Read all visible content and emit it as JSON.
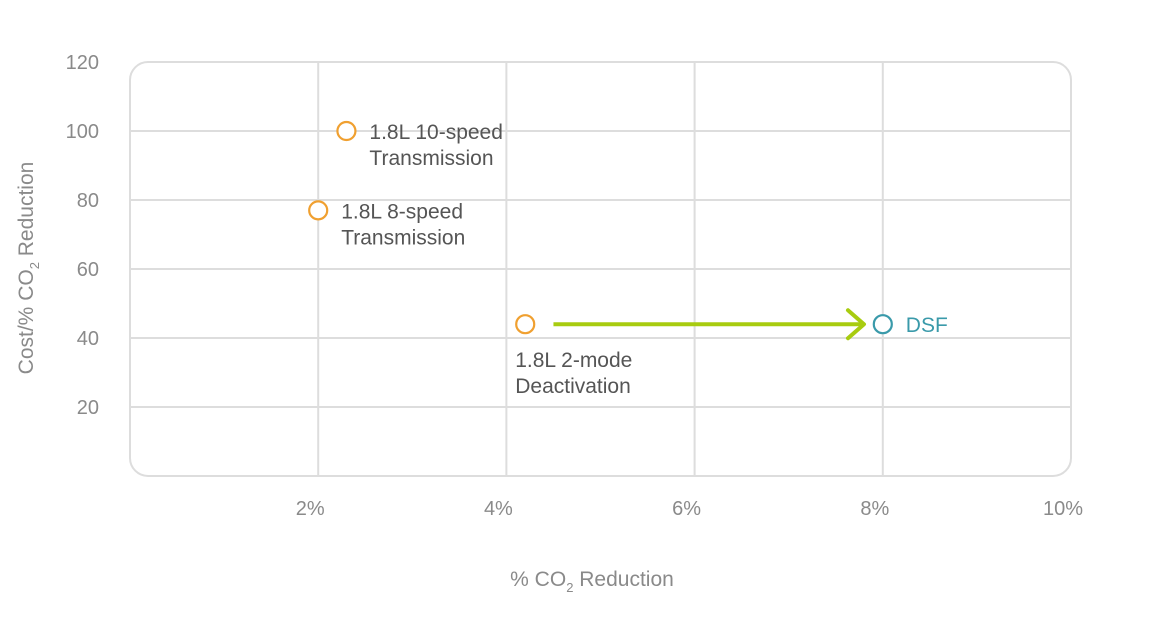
{
  "chart_data": {
    "type": "scatter",
    "title": "",
    "xlabel": {
      "before": "% CO",
      "subscript": "2",
      "after": " Reduction"
    },
    "ylabel": {
      "before": "Cost/% CO",
      "subscript": "2",
      "after": " Reduction"
    },
    "xlim": [
      0,
      10
    ],
    "ylim": [
      0,
      120
    ],
    "grid": true,
    "x_ticks": [
      {
        "value": 2,
        "label": "2%"
      },
      {
        "value": 4,
        "label": "4%"
      },
      {
        "value": 6,
        "label": "6%"
      },
      {
        "value": 8,
        "label": "8%"
      },
      {
        "value": 10,
        "label": "10%"
      }
    ],
    "y_ticks": [
      {
        "value": 20,
        "label": "20"
      },
      {
        "value": 40,
        "label": "40"
      },
      {
        "value": 60,
        "label": "60"
      },
      {
        "value": 80,
        "label": "80"
      },
      {
        "value": 100,
        "label": "100"
      },
      {
        "value": 120,
        "label": "120"
      }
    ],
    "points": [
      {
        "label_lines": [
          "1.8L 10-speed",
          "Transmission"
        ],
        "x": 2.3,
        "y": 100,
        "color": "#f0a030",
        "label_side": "right"
      },
      {
        "label_lines": [
          "1.8L 8-speed",
          "Transmission"
        ],
        "x": 2.0,
        "y": 77,
        "color": "#f0a030",
        "label_side": "right"
      },
      {
        "label_lines": [
          "1.8L 2-mode",
          "Deactivation"
        ],
        "x": 4.2,
        "y": 44,
        "color": "#f0a030",
        "label_side": "below"
      },
      {
        "label_lines": [
          "DSF"
        ],
        "x": 8.0,
        "y": 44,
        "color": "#3a9aaa",
        "label_side": "right"
      }
    ],
    "arrow": {
      "from_x": 4.5,
      "to_x": 7.8,
      "y": 44,
      "color": "#a8cc10"
    },
    "colors": {
      "grid": "#dddddd",
      "text": "#555555",
      "tick": "#8a8a8a"
    }
  }
}
